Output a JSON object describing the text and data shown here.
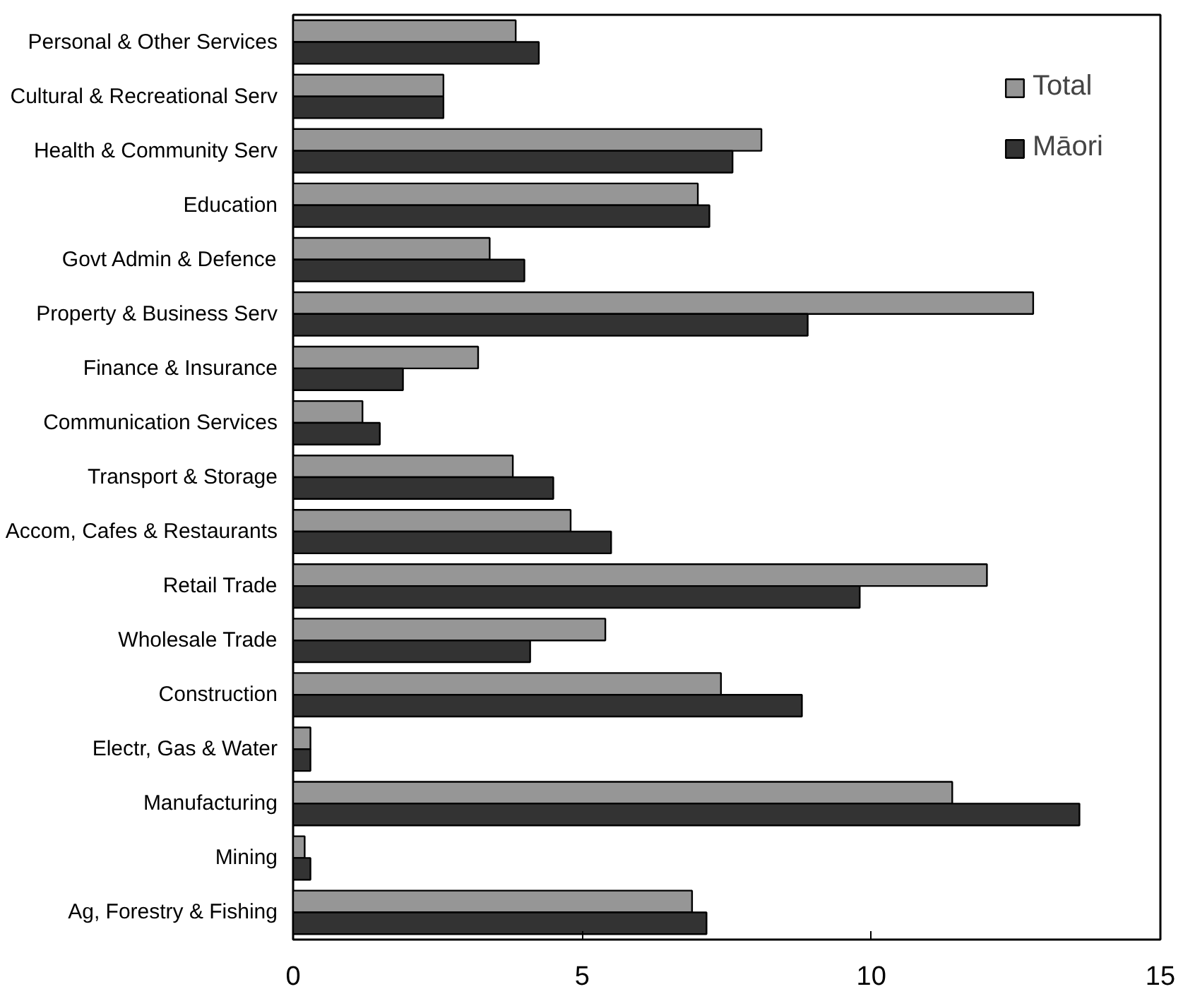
{
  "chart_data": {
    "type": "bar",
    "orientation": "horizontal",
    "categories": [
      "Personal & Other Services",
      "Cultural & Recreational Serv",
      "Health & Community Serv",
      "Education",
      "Govt Admin & Defence",
      "Property & Business Serv",
      "Finance & Insurance",
      "Communication Services",
      "Transport & Storage",
      "Accom, Cafes & Restaurants",
      "Retail Trade",
      "Wholesale Trade",
      "Construction",
      "Electr, Gas & Water",
      "Manufacturing",
      "Mining",
      "Ag, Forestry & Fishing"
    ],
    "series": [
      {
        "name": "Total",
        "color": "#969696",
        "values": [
          3.85,
          2.6,
          8.1,
          7.0,
          3.4,
          12.8,
          3.2,
          1.2,
          3.8,
          4.8,
          12.0,
          5.4,
          7.4,
          0.3,
          11.4,
          0.2,
          6.9
        ]
      },
      {
        "name": "Māori",
        "color": "#333333",
        "values": [
          4.25,
          2.6,
          7.6,
          7.2,
          4.0,
          8.9,
          1.9,
          1.5,
          4.5,
          5.5,
          9.8,
          4.1,
          8.8,
          0.3,
          13.6,
          0.3,
          7.15
        ]
      }
    ],
    "xlim": [
      0,
      15
    ],
    "xticks": [
      0,
      5,
      10,
      15
    ],
    "grid": false,
    "legend": "top right"
  }
}
